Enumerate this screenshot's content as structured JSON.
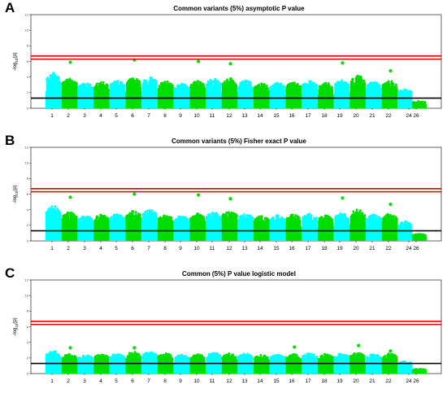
{
  "panels": [
    {
      "letter": "A",
      "title": "Common variants (5%) asymptotic P value"
    },
    {
      "letter": "B",
      "title": "Common variants (5%) Fisher exact P value"
    },
    {
      "letter": "C",
      "title": "Common (5%) P value logistic model"
    }
  ],
  "colors": {
    "series_odd": "#00FFFF",
    "series_even": "#00DD00",
    "threshold_red": "#E00000",
    "baseline": "#000000"
  },
  "chart_data": [
    {
      "type": "scatter",
      "title": "Common variants (5%) asymptotic P value",
      "ylabel": "-log10(p)",
      "xlabel": "",
      "categories": [
        "1",
        "2",
        "3",
        "4",
        "5",
        "6",
        "7",
        "8",
        "9",
        "10",
        "11",
        "12",
        "13",
        "14",
        "15",
        "16",
        "17",
        "18",
        "19",
        "20",
        "21",
        "22",
        "24",
        "26"
      ],
      "ylim": [
        0,
        12
      ],
      "significance_lines": [
        6.7,
        6.3
      ],
      "reference_line": 1.3,
      "typical_max": [
        4.6,
        3.8,
        3.3,
        3.4,
        3.6,
        3.9,
        4.0,
        3.5,
        3.2,
        3.5,
        3.8,
        3.9,
        3.6,
        3.2,
        3.3,
        3.4,
        3.5,
        3.3,
        3.6,
        4.2,
        3.4,
        3.5,
        2.5,
        0.9
      ],
      "top_hits": [
        {
          "chr": "2",
          "value": 5.9
        },
        {
          "chr": "6",
          "value": 6.2
        },
        {
          "chr": "10",
          "value": 6.0
        },
        {
          "chr": "12",
          "value": 5.7
        },
        {
          "chr": "19",
          "value": 5.8
        },
        {
          "chr": "22",
          "value": 4.8
        }
      ]
    },
    {
      "type": "scatter",
      "title": "Common variants (5%) Fisher exact P value",
      "ylabel": "-log10(p)",
      "xlabel": "",
      "categories": [
        "1",
        "2",
        "3",
        "4",
        "5",
        "6",
        "7",
        "8",
        "9",
        "10",
        "11",
        "12",
        "13",
        "14",
        "15",
        "16",
        "17",
        "18",
        "19",
        "20",
        "21",
        "22",
        "24",
        "26"
      ],
      "ylim": [
        0,
        12
      ],
      "significance_lines": [
        6.7,
        6.3
      ],
      "reference_line": 1.3,
      "typical_max": [
        4.5,
        3.7,
        3.3,
        3.4,
        3.5,
        3.9,
        4.0,
        3.4,
        3.2,
        3.5,
        3.7,
        3.9,
        3.5,
        3.2,
        3.3,
        3.4,
        3.5,
        3.3,
        3.6,
        4.1,
        3.4,
        3.5,
        2.5,
        0.9
      ],
      "top_hits": [
        {
          "chr": "2",
          "value": 5.6
        },
        {
          "chr": "6",
          "value": 6.0
        },
        {
          "chr": "10",
          "value": 5.9
        },
        {
          "chr": "12",
          "value": 5.4
        },
        {
          "chr": "19",
          "value": 5.5
        },
        {
          "chr": "22",
          "value": 4.7
        }
      ]
    },
    {
      "type": "scatter",
      "title": "Common (5%) P value logistic model",
      "ylabel": "-log10(p)",
      "xlabel": "",
      "categories": [
        "1",
        "2",
        "3",
        "4",
        "5",
        "6",
        "7",
        "8",
        "9",
        "10",
        "11",
        "12",
        "13",
        "14",
        "15",
        "16",
        "17",
        "18",
        "19",
        "20",
        "21",
        "22",
        "24",
        "26"
      ],
      "ylim": [
        0,
        12
      ],
      "significance_lines": [
        6.7,
        6.3
      ],
      "reference_line": 1.3,
      "typical_max": [
        2.9,
        2.5,
        2.4,
        2.5,
        2.6,
        2.8,
        2.8,
        2.6,
        2.4,
        2.5,
        2.7,
        2.6,
        2.6,
        2.4,
        2.5,
        2.5,
        2.6,
        2.5,
        2.6,
        2.7,
        2.5,
        2.6,
        1.6,
        0.6
      ],
      "top_hits": [
        {
          "chr": "2",
          "value": 3.3
        },
        {
          "chr": "6",
          "value": 3.3
        },
        {
          "chr": "16",
          "value": 3.4
        },
        {
          "chr": "20",
          "value": 3.6
        },
        {
          "chr": "22",
          "value": 2.9
        }
      ]
    }
  ]
}
